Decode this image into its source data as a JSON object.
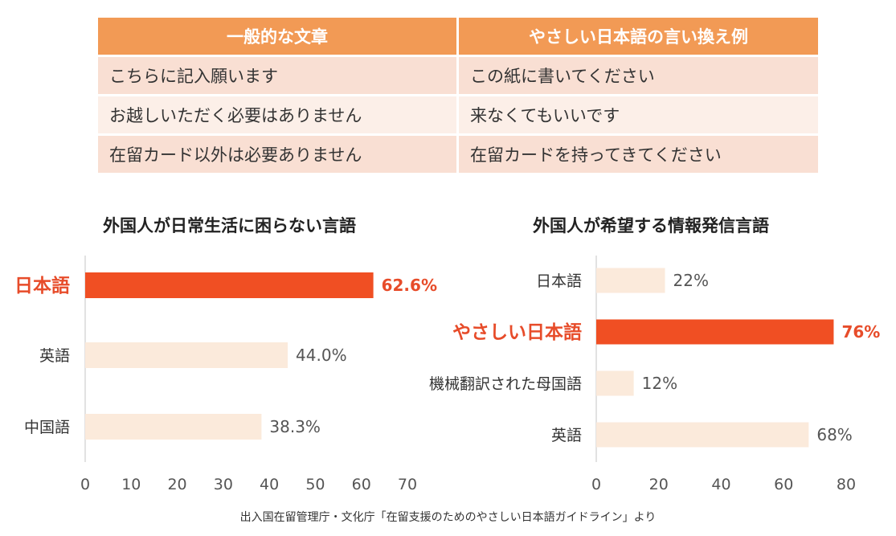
{
  "colors": {
    "header_bg": "#f29a55",
    "row_odd": "#f9dfd3",
    "row_even": "#fcefe8",
    "bar_normal": "#fbeadb",
    "bar_highlight": "#f04f23",
    "label_highlight": "#e74c2a"
  },
  "table": {
    "headers": [
      "一般的な文章",
      "やさしい日本語の言い換え例"
    ],
    "rows": [
      [
        "こちらに記入願います",
        "この紙に書いてください"
      ],
      [
        "お越しいただく必要はありません",
        "来なくてもいいです"
      ],
      [
        "在留カード以外は必要ありません",
        "在留カードを持ってきてください"
      ]
    ]
  },
  "chart_data": [
    {
      "type": "bar",
      "orientation": "horizontal",
      "title": "外国人が日常生活に困らない言語",
      "categories": [
        "日本語",
        "英語",
        "中国語"
      ],
      "values": [
        62.6,
        44.0,
        38.3
      ],
      "value_labels": [
        "62.6%",
        "44.0%",
        "38.3%"
      ],
      "highlight_index": 0,
      "xlim": [
        0,
        70
      ],
      "xticks": [
        "0",
        "10",
        "20",
        "30",
        "40",
        "50",
        "60",
        "70"
      ],
      "xlabel": "",
      "ylabel": ""
    },
    {
      "type": "bar",
      "orientation": "horizontal",
      "title": "外国人が希望する情報発信言語",
      "categories": [
        "日本語",
        "やさしい日本語",
        "機械翻訳された母国語",
        "英語"
      ],
      "values": [
        22,
        76,
        12,
        68
      ],
      "value_labels": [
        "22%",
        "76%",
        "12%",
        "68%"
      ],
      "highlight_index": 1,
      "xlim": [
        0,
        80
      ],
      "xticks": [
        "0",
        "20",
        "40",
        "60",
        "80"
      ],
      "xlabel": "",
      "ylabel": ""
    }
  ],
  "source_note": "出入国在留管理庁・文化庁「在留支援のためのやさしい日本語ガイドライン」より"
}
